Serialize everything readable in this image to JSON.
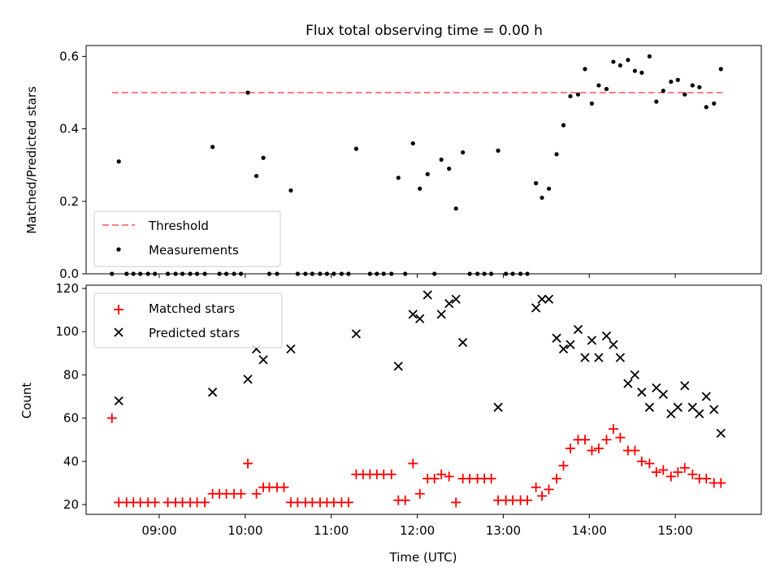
{
  "figure": {
    "title": "Flux total observing time = 0.00 h"
  },
  "chart_data": [
    {
      "type": "scatter",
      "ylabel": "Matched/Predicted stars",
      "xlim": [
        8.15,
        16.0
      ],
      "ylim": [
        0,
        0.63
      ],
      "yticks": [
        0.0,
        0.2,
        0.4,
        0.6
      ],
      "ytick_labels": [
        "0.0",
        "0.2",
        "0.4",
        "0.6"
      ],
      "legend": {
        "placement": "lower-left",
        "entries": [
          "Threshold",
          "Measurements"
        ]
      },
      "grid": false,
      "threshold": {
        "name": "Threshold",
        "value": 0.5,
        "x_range": [
          8.45,
          15.55
        ],
        "color": "#ff7f7f"
      },
      "measurements": {
        "name": "Measurements",
        "color": "#000000",
        "points": [
          [
            8.53,
            0.31
          ],
          [
            9.62,
            0.35
          ],
          [
            10.03,
            0.5
          ],
          [
            10.13,
            0.27
          ],
          [
            10.21,
            0.32
          ],
          [
            10.53,
            0.23
          ],
          [
            11.29,
            0.345
          ],
          [
            11.78,
            0.265
          ],
          [
            11.95,
            0.36
          ],
          [
            12.03,
            0.235
          ],
          [
            12.12,
            0.275
          ],
          [
            12.28,
            0.315
          ],
          [
            12.37,
            0.29
          ],
          [
            12.45,
            0.18
          ],
          [
            12.53,
            0.335
          ],
          [
            12.94,
            0.34
          ],
          [
            13.38,
            0.25
          ],
          [
            13.45,
            0.21
          ],
          [
            13.53,
            0.235
          ],
          [
            13.62,
            0.33
          ],
          [
            13.7,
            0.41
          ],
          [
            13.78,
            0.49
          ],
          [
            13.87,
            0.495
          ],
          [
            13.95,
            0.565
          ],
          [
            14.03,
            0.47
          ],
          [
            14.11,
            0.52
          ],
          [
            14.2,
            0.51
          ],
          [
            14.28,
            0.585
          ],
          [
            14.36,
            0.575
          ],
          [
            14.45,
            0.59
          ],
          [
            14.53,
            0.56
          ],
          [
            14.61,
            0.555
          ],
          [
            14.7,
            0.6
          ],
          [
            14.78,
            0.475
          ],
          [
            14.86,
            0.505
          ],
          [
            14.95,
            0.53
          ],
          [
            15.03,
            0.535
          ],
          [
            15.11,
            0.495
          ],
          [
            15.2,
            0.52
          ],
          [
            15.28,
            0.515
          ],
          [
            15.36,
            0.46
          ],
          [
            15.45,
            0.47
          ],
          [
            15.53,
            0.565
          ],
          [
            8.45,
            0
          ],
          [
            8.62,
            0
          ],
          [
            8.7,
            0
          ],
          [
            8.78,
            0
          ],
          [
            8.87,
            0
          ],
          [
            8.95,
            0
          ],
          [
            9.1,
            0
          ],
          [
            9.19,
            0
          ],
          [
            9.27,
            0
          ],
          [
            9.36,
            0
          ],
          [
            9.44,
            0
          ],
          [
            9.53,
            0
          ],
          [
            9.7,
            0
          ],
          [
            9.78,
            0
          ],
          [
            9.87,
            0
          ],
          [
            9.95,
            0
          ],
          [
            10.28,
            0
          ],
          [
            10.37,
            0
          ],
          [
            10.61,
            0
          ],
          [
            10.7,
            0
          ],
          [
            10.78,
            0
          ],
          [
            10.87,
            0
          ],
          [
            10.95,
            0
          ],
          [
            11.03,
            0
          ],
          [
            11.12,
            0
          ],
          [
            11.2,
            0
          ],
          [
            11.45,
            0
          ],
          [
            11.53,
            0
          ],
          [
            11.61,
            0
          ],
          [
            11.7,
            0
          ],
          [
            11.86,
            0
          ],
          [
            12.2,
            0
          ],
          [
            12.61,
            0
          ],
          [
            12.7,
            0
          ],
          [
            12.78,
            0
          ],
          [
            12.86,
            0
          ],
          [
            13.03,
            0
          ],
          [
            13.11,
            0
          ],
          [
            13.2,
            0
          ],
          [
            13.28,
            0
          ]
        ]
      }
    },
    {
      "type": "scatter",
      "ylabel": "Count",
      "xlabel": "Time (UTC)",
      "xlim": [
        8.15,
        16.0
      ],
      "ylim": [
        15.5,
        121.5
      ],
      "yticks": [
        20,
        40,
        60,
        80,
        100,
        120
      ],
      "ytick_labels": [
        "20",
        "40",
        "60",
        "80",
        "100",
        "120"
      ],
      "xticks": [
        9,
        10,
        11,
        12,
        13,
        14,
        15
      ],
      "xtick_labels": [
        "09:00",
        "10:00",
        "11:00",
        "12:00",
        "13:00",
        "14:00",
        "15:00"
      ],
      "legend": {
        "placement": "top-left",
        "entries": [
          "Matched stars",
          "Predicted stars"
        ]
      },
      "grid": false,
      "series": [
        {
          "name": "Matched stars",
          "marker": "plus",
          "color": "#ff0000",
          "points": [
            [
              8.45,
              60
            ],
            [
              8.53,
              21
            ],
            [
              8.62,
              21
            ],
            [
              8.7,
              21
            ],
            [
              8.78,
              21
            ],
            [
              8.87,
              21
            ],
            [
              8.95,
              21
            ],
            [
              9.1,
              21
            ],
            [
              9.19,
              21
            ],
            [
              9.27,
              21
            ],
            [
              9.36,
              21
            ],
            [
              9.44,
              21
            ],
            [
              9.53,
              21
            ],
            [
              9.62,
              25
            ],
            [
              9.7,
              25
            ],
            [
              9.78,
              25
            ],
            [
              9.87,
              25
            ],
            [
              9.95,
              25
            ],
            [
              10.03,
              39
            ],
            [
              10.13,
              25
            ],
            [
              10.21,
              28
            ],
            [
              10.28,
              28
            ],
            [
              10.37,
              28
            ],
            [
              10.45,
              28
            ],
            [
              10.53,
              21
            ],
            [
              10.61,
              21
            ],
            [
              10.7,
              21
            ],
            [
              10.78,
              21
            ],
            [
              10.87,
              21
            ],
            [
              10.95,
              21
            ],
            [
              11.03,
              21
            ],
            [
              11.12,
              21
            ],
            [
              11.2,
              21
            ],
            [
              11.29,
              34
            ],
            [
              11.37,
              34
            ],
            [
              11.45,
              34
            ],
            [
              11.53,
              34
            ],
            [
              11.61,
              34
            ],
            [
              11.7,
              34
            ],
            [
              11.78,
              22
            ],
            [
              11.86,
              22
            ],
            [
              11.95,
              39
            ],
            [
              12.03,
              25
            ],
            [
              12.12,
              32
            ],
            [
              12.2,
              32
            ],
            [
              12.28,
              34
            ],
            [
              12.37,
              33
            ],
            [
              12.45,
              21
            ],
            [
              12.53,
              32
            ],
            [
              12.61,
              32
            ],
            [
              12.7,
              32
            ],
            [
              12.78,
              32
            ],
            [
              12.86,
              32
            ],
            [
              12.94,
              22
            ],
            [
              13.03,
              22
            ],
            [
              13.11,
              22
            ],
            [
              13.2,
              22
            ],
            [
              13.28,
              22
            ],
            [
              13.38,
              28
            ],
            [
              13.45,
              24
            ],
            [
              13.53,
              27
            ],
            [
              13.62,
              32
            ],
            [
              13.7,
              38
            ],
            [
              13.78,
              46
            ],
            [
              13.87,
              50
            ],
            [
              13.95,
              50
            ],
            [
              14.03,
              45
            ],
            [
              14.11,
              46
            ],
            [
              14.2,
              50
            ],
            [
              14.28,
              55
            ],
            [
              14.36,
              51
            ],
            [
              14.45,
              45
            ],
            [
              14.53,
              45
            ],
            [
              14.61,
              40
            ],
            [
              14.7,
              39
            ],
            [
              14.78,
              35
            ],
            [
              14.86,
              36
            ],
            [
              14.95,
              33
            ],
            [
              15.03,
              35
            ],
            [
              15.11,
              37
            ],
            [
              15.2,
              34
            ],
            [
              15.28,
              32
            ],
            [
              15.36,
              32
            ],
            [
              15.45,
              30
            ],
            [
              15.53,
              30
            ]
          ]
        },
        {
          "name": "Predicted stars",
          "marker": "x",
          "color": "#000000",
          "points": [
            [
              8.53,
              68
            ],
            [
              9.62,
              72
            ],
            [
              10.03,
              78
            ],
            [
              10.13,
              92
            ],
            [
              10.21,
              87
            ],
            [
              10.53,
              92
            ],
            [
              11.29,
              99
            ],
            [
              11.78,
              84
            ],
            [
              11.95,
              108
            ],
            [
              12.03,
              106
            ],
            [
              12.12,
              117
            ],
            [
              12.28,
              108
            ],
            [
              12.37,
              113
            ],
            [
              12.45,
              115
            ],
            [
              12.53,
              95
            ],
            [
              12.94,
              65
            ],
            [
              13.38,
              111
            ],
            [
              13.45,
              115
            ],
            [
              13.53,
              115
            ],
            [
              13.62,
              97
            ],
            [
              13.7,
              92
            ],
            [
              13.78,
              94
            ],
            [
              13.87,
              101
            ],
            [
              13.95,
              88
            ],
            [
              14.03,
              96
            ],
            [
              14.11,
              88
            ],
            [
              14.2,
              98
            ],
            [
              14.28,
              94
            ],
            [
              14.36,
              88
            ],
            [
              14.45,
              76
            ],
            [
              14.53,
              80
            ],
            [
              14.61,
              72
            ],
            [
              14.7,
              65
            ],
            [
              14.78,
              74
            ],
            [
              14.86,
              71
            ],
            [
              14.95,
              62
            ],
            [
              15.03,
              65
            ],
            [
              15.11,
              75
            ],
            [
              15.2,
              65
            ],
            [
              15.28,
              62
            ],
            [
              15.36,
              70
            ],
            [
              15.45,
              64
            ],
            [
              15.53,
              53
            ]
          ]
        }
      ]
    }
  ]
}
